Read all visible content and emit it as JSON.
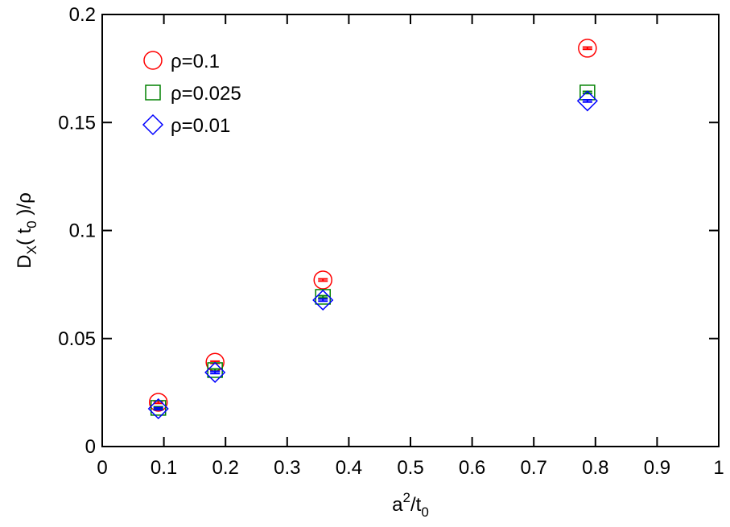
{
  "chart_data": {
    "type": "scatter",
    "xlabel": [
      {
        "text": "a"
      },
      {
        "text": "2",
        "shift": "super"
      },
      {
        "text": "/t"
      },
      {
        "text": "0",
        "shift": "sub"
      }
    ],
    "ylabel": [
      {
        "text": "D"
      },
      {
        "text": "X",
        "shift": "sub"
      },
      {
        "text": "( t"
      },
      {
        "text": "0",
        "shift": "sub"
      },
      {
        "text": " )/ρ"
      }
    ],
    "xlim": [
      0,
      1
    ],
    "ylim": [
      0,
      0.2
    ],
    "xticks": [
      0,
      0.1,
      0.2,
      0.3,
      0.4,
      0.5,
      0.6,
      0.7,
      0.8,
      0.9,
      1
    ],
    "yticks": [
      0,
      0.05,
      0.1,
      0.15,
      0.2
    ],
    "legend": "upper left",
    "series": [
      {
        "name": "ρ=0.1",
        "color": "#ff0000",
        "marker": "circle",
        "x": [
          0.091,
          0.183,
          0.358,
          0.787
        ],
        "values": [
          0.0205,
          0.039,
          0.0771,
          0.1844
        ],
        "errors": [
          0.0005,
          0.0005,
          0.0005,
          0.0005
        ]
      },
      {
        "name": "ρ=0.025",
        "color": "#008000",
        "marker": "square",
        "x": [
          0.091,
          0.183,
          0.358,
          0.787
        ],
        "values": [
          0.0179,
          0.0354,
          0.0693,
          0.1639
        ],
        "errors": [
          0.0005,
          0.0005,
          0.0005,
          0.0005
        ]
      },
      {
        "name": "ρ=0.01",
        "color": "#0000ff",
        "marker": "diamond",
        "x": [
          0.091,
          0.183,
          0.358,
          0.787
        ],
        "values": [
          0.0175,
          0.0343,
          0.0678,
          0.16
        ],
        "errors": [
          0.0005,
          0.0005,
          0.0005,
          0.0005
        ]
      }
    ]
  }
}
